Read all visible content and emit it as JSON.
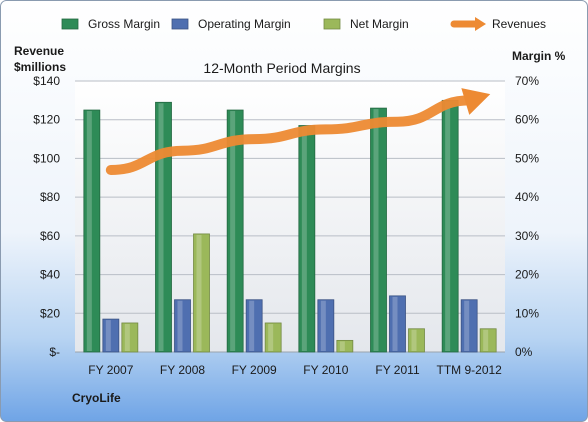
{
  "chart_data": {
    "type": "bar",
    "title": "12-Month Period Margins",
    "categories": [
      "FY 2007",
      "FY 2008",
      "FY 2009",
      "FY 2010",
      "FY 2011",
      "TTM 9-2012"
    ],
    "series": [
      {
        "name": "Gross Margin",
        "axis": "right",
        "color": "#2e8b57",
        "values": [
          62.5,
          64.5,
          62.5,
          58.5,
          63.0,
          65.0
        ]
      },
      {
        "name": "Operating Margin",
        "axis": "right",
        "color": "#4f6fb0",
        "values": [
          8.5,
          13.5,
          13.5,
          13.5,
          14.5,
          13.5
        ]
      },
      {
        "name": "Net Margin",
        "axis": "right",
        "color": "#9bb85a",
        "values": [
          7.5,
          30.5,
          7.5,
          3.0,
          6.0,
          6.0
        ]
      },
      {
        "name": "Revenues",
        "type": "line",
        "axis": "left",
        "color": "#ed8a33",
        "values": [
          94,
          104,
          110,
          115,
          119,
          130
        ]
      }
    ],
    "y_left": {
      "label_line1": "Revenue",
      "label_line2": "$millions",
      "min": 0,
      "max": 140,
      "ticks": [
        "$-",
        "$20",
        "$40",
        "$60",
        "$80",
        "$100",
        "$120",
        "$140"
      ]
    },
    "y_right": {
      "label": "Margin %",
      "min": 0,
      "max": 70,
      "ticks": [
        "0%",
        "10%",
        "20%",
        "30%",
        "40%",
        "50%",
        "60%",
        "70%"
      ]
    },
    "grid": true,
    "legend_position": "top"
  },
  "company": "CryoLife"
}
